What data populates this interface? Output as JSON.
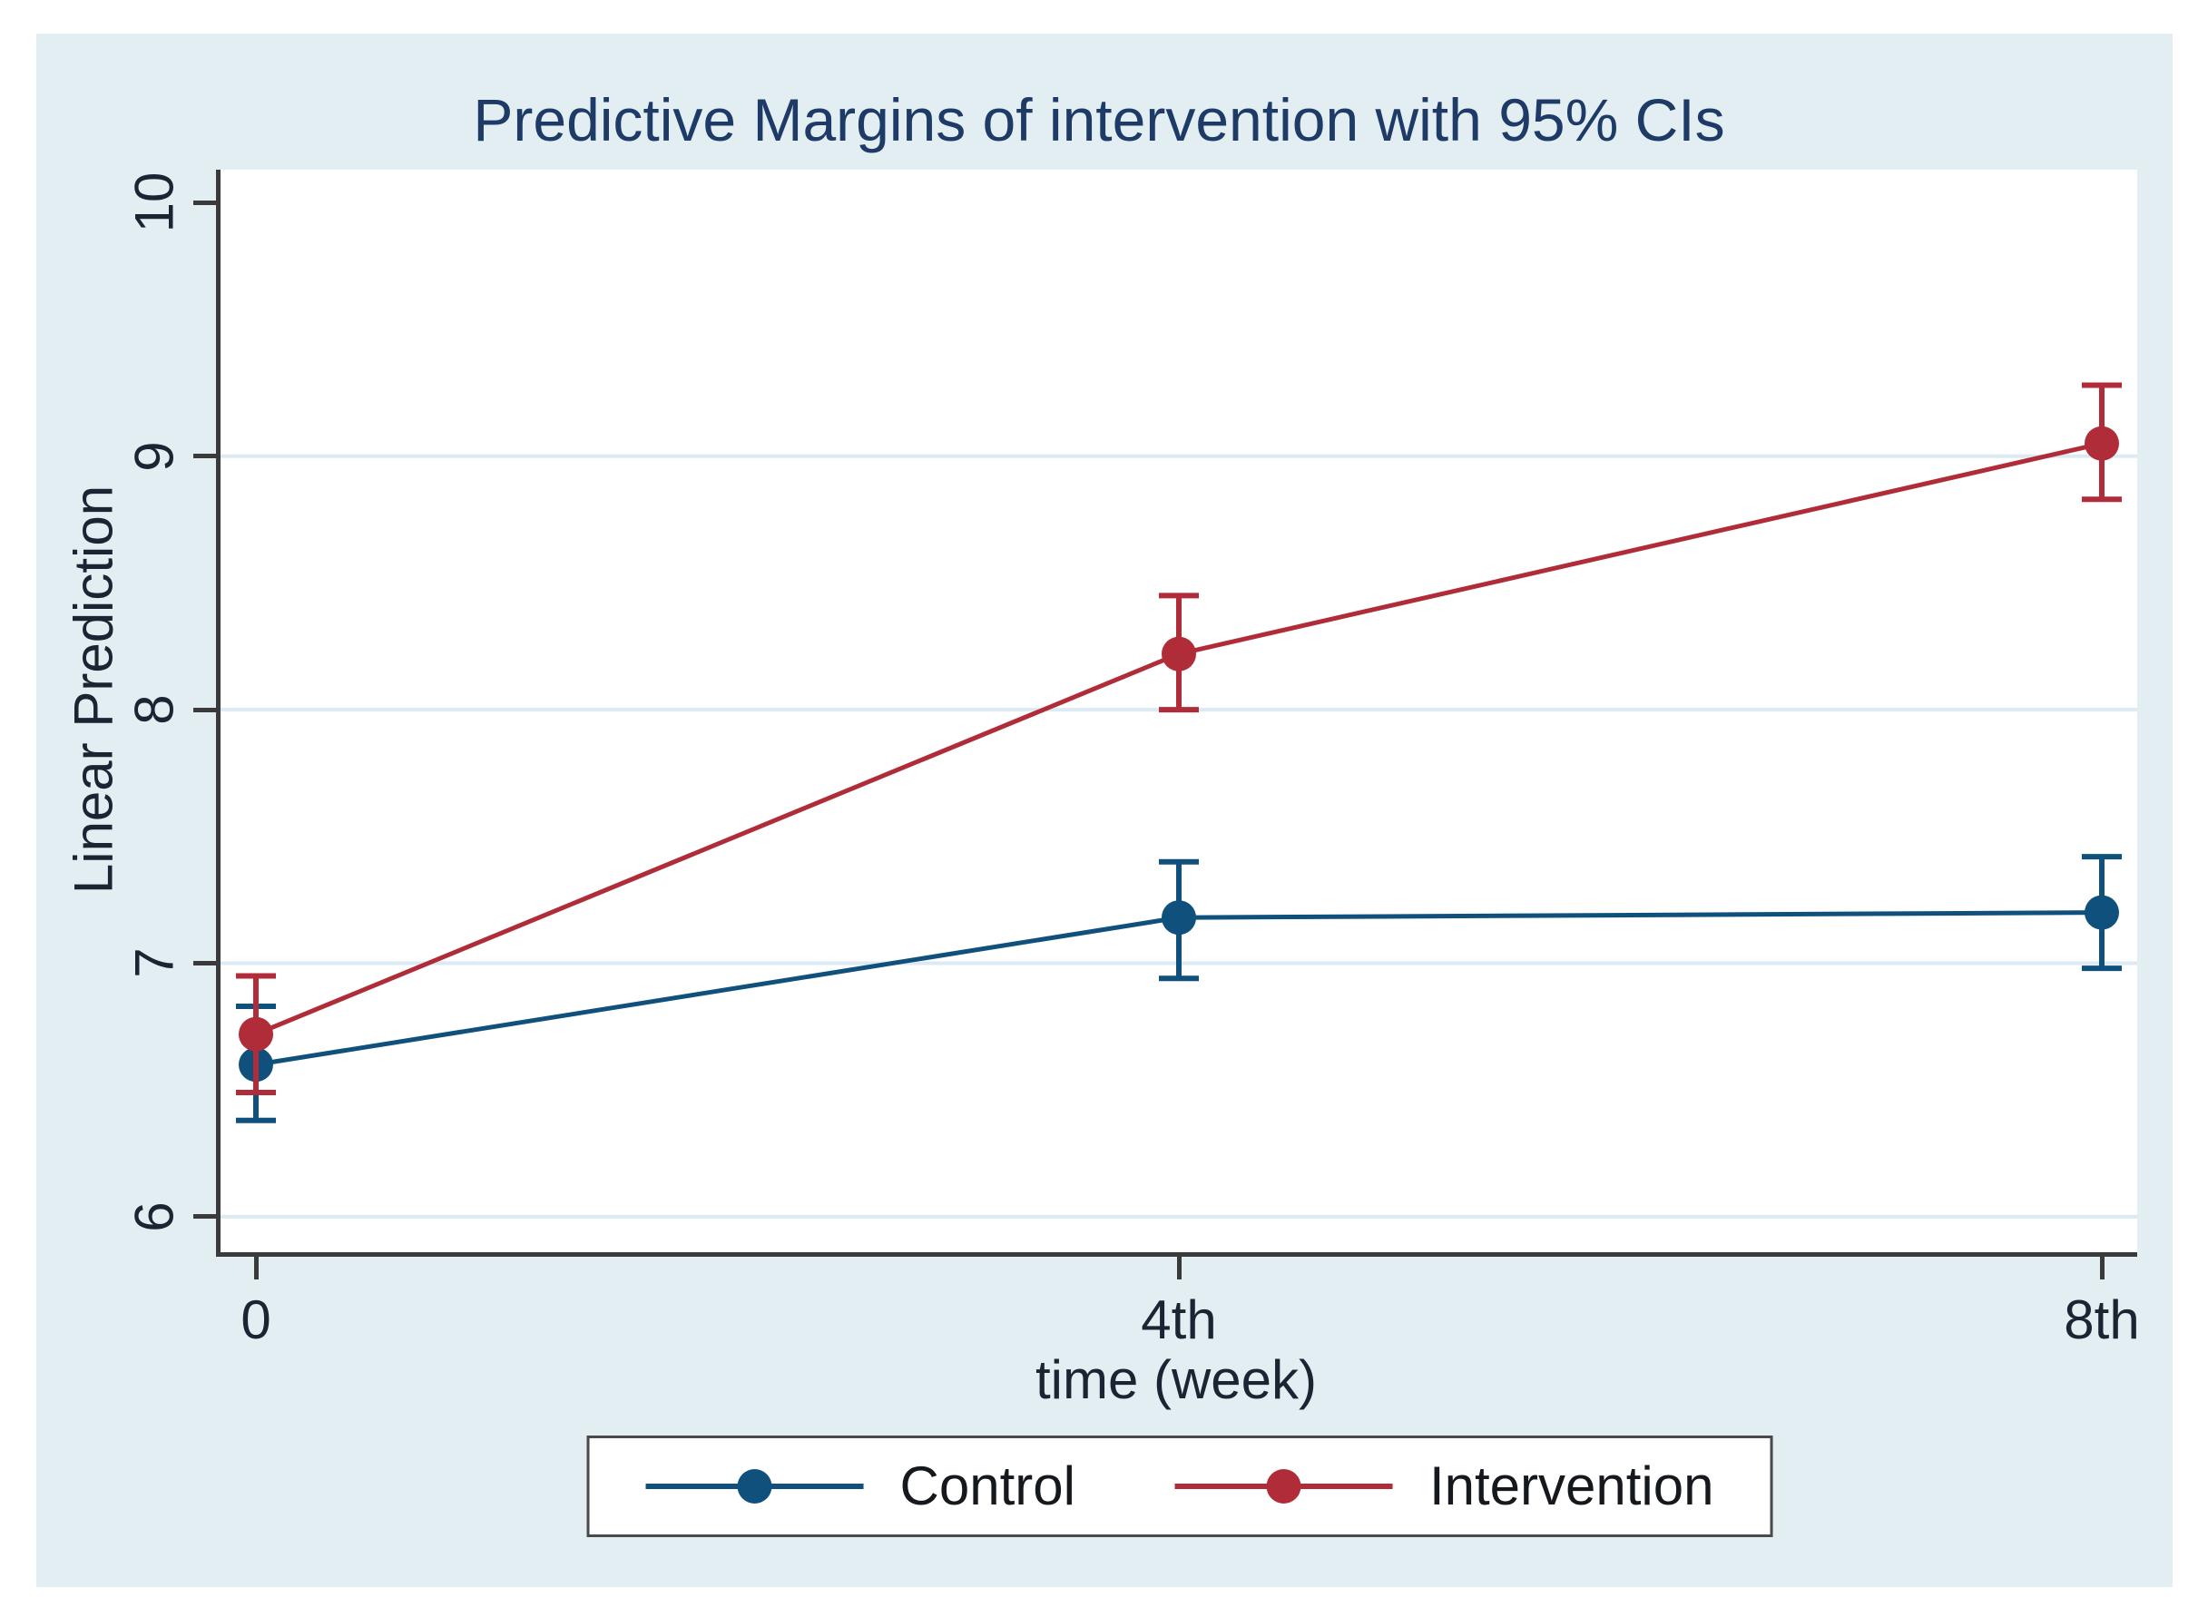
{
  "figure": {
    "title": "Predictive Margins of intervention with 95% CIs"
  },
  "chart_data": {
    "type": "line",
    "title": "Predictive Margins of intervention with 95% CIs",
    "xlabel": "time (week)",
    "ylabel": "Linear Prediction",
    "categories": [
      "0",
      "4th",
      "8th"
    ],
    "yticks": [
      10,
      9,
      8,
      7,
      6
    ],
    "grid_yticks": [
      9,
      8,
      7,
      6
    ],
    "ylim": [
      5.86,
      10.13
    ],
    "grid": true,
    "legend_position": "bottom-center",
    "error_bars": "95% CI",
    "series": [
      {
        "name": "Control",
        "color": "#10507c",
        "values": [
          6.6,
          7.18,
          7.2
        ],
        "ci_low": [
          6.38,
          6.94,
          6.98
        ],
        "ci_high": [
          6.83,
          7.4,
          7.42
        ]
      },
      {
        "name": "Intervention",
        "color": "#b02c38",
        "values": [
          6.72,
          8.22,
          9.05
        ],
        "ci_low": [
          6.49,
          8.0,
          8.83
        ],
        "ci_high": [
          6.95,
          8.45,
          9.28
        ]
      }
    ]
  },
  "colors": {
    "canvas_bg": "#e2eef2",
    "plot_bg": "#ffffff",
    "grid": "#dceaf3",
    "axis": "#3a3a3a",
    "title_text": "#1e3a66",
    "axis_text": "#1b2433",
    "legend_border": "#4a4a4a",
    "legend_bg": "#ffffff"
  }
}
